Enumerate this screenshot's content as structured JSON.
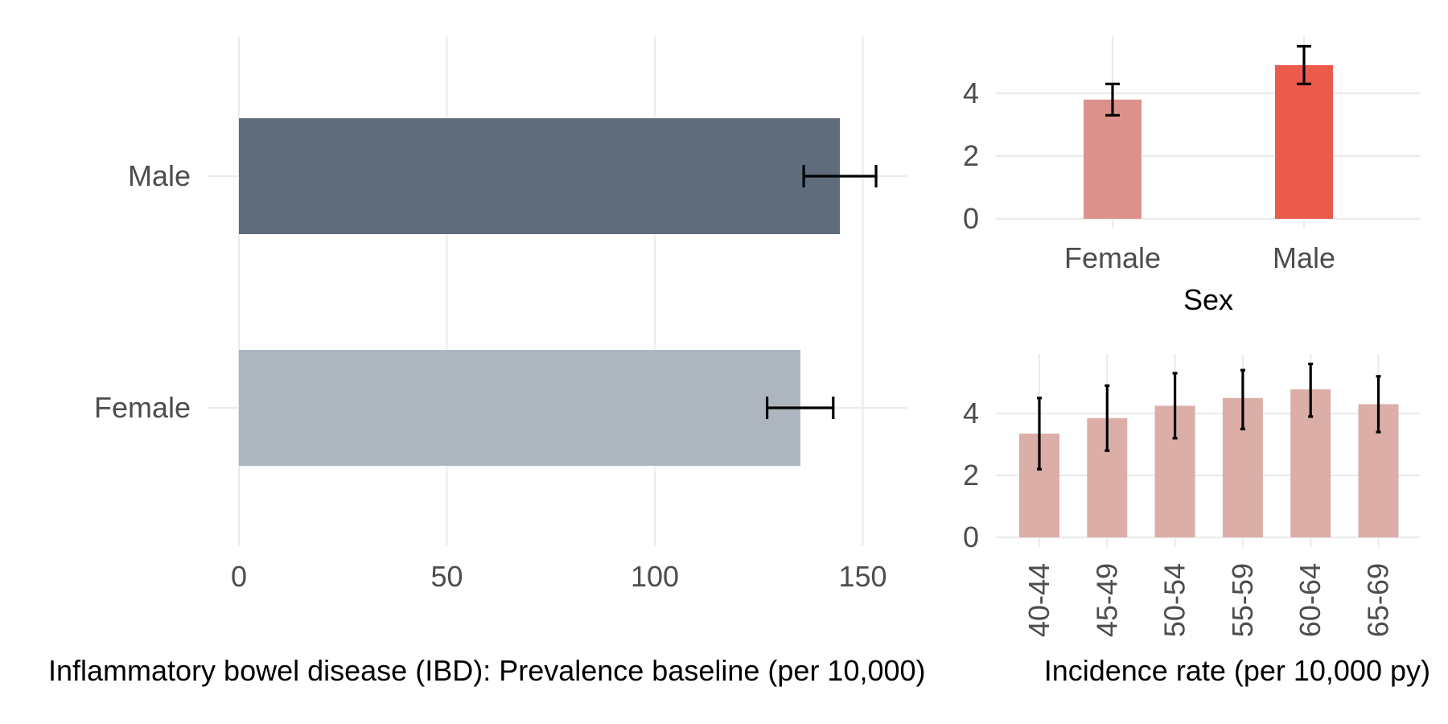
{
  "chart_data": [
    {
      "type": "bar",
      "orientation": "horizontal",
      "categories": [
        "Male",
        "Female"
      ],
      "values": [
        144.5,
        135.0
      ],
      "error_low": [
        135.8,
        127.0
      ],
      "error_high": [
        153.2,
        142.9
      ],
      "colors": [
        "#5e6c7b",
        "#adb5be"
      ],
      "xlabel": "Inflammatory bowel disease (IBD): Prevalence baseline (per 10,000)",
      "ylabel": "",
      "xlim": [
        0,
        160
      ],
      "xticks": [
        "0",
        "50",
        "100",
        "150"
      ],
      "grid": true
    },
    {
      "type": "bar",
      "categories": [
        "Female",
        "Male"
      ],
      "values": [
        3.8,
        4.9
      ],
      "error_low": [
        3.3,
        4.3
      ],
      "error_high": [
        4.3,
        5.5
      ],
      "colors": [
        "#dc928a",
        "#eb5b4c"
      ],
      "xlabel": "Sex",
      "ylabel": "",
      "ylim": [
        0,
        5.8
      ],
      "yticks": [
        "0",
        "2",
        "4"
      ],
      "grid": true
    },
    {
      "type": "bar",
      "categories": [
        "40-44",
        "45-49",
        "50-54",
        "55-59",
        "60-64",
        "65-69"
      ],
      "values": [
        3.35,
        3.85,
        4.25,
        4.5,
        4.78,
        4.3
      ],
      "error_low": [
        2.2,
        2.8,
        3.2,
        3.5,
        3.9,
        3.4
      ],
      "error_high": [
        4.5,
        4.9,
        5.3,
        5.4,
        5.6,
        5.2
      ],
      "colors": [
        "#dbaea8"
      ],
      "xlabel": "Incidence rate (per 10,000 py)",
      "ylabel": "",
      "ylim": [
        0,
        5.8
      ],
      "yticks": [
        "0",
        "2",
        "4"
      ],
      "grid": true
    }
  ]
}
